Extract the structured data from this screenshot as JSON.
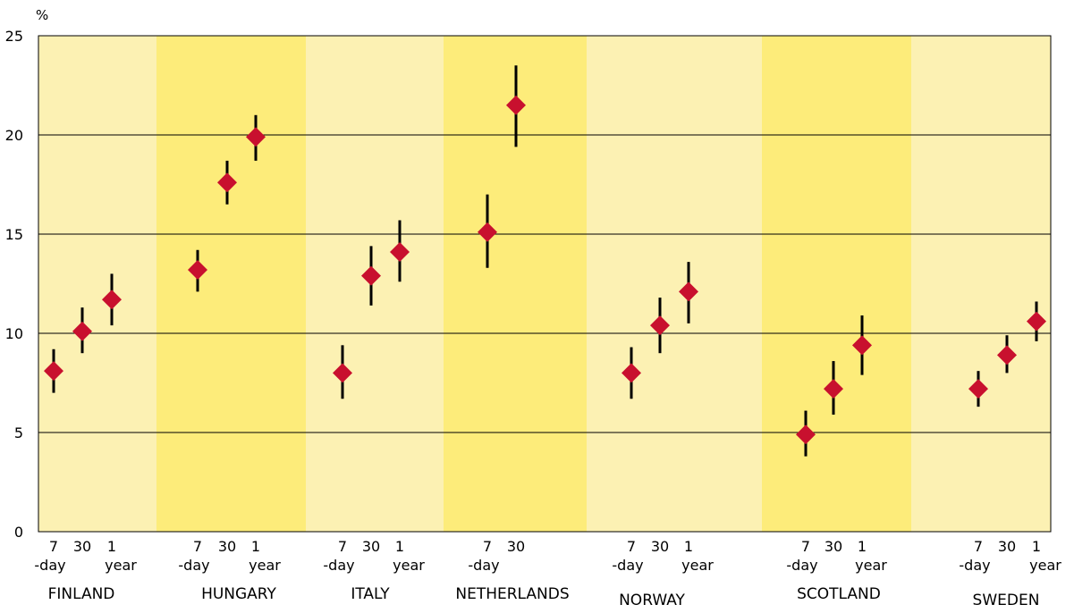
{
  "chart_data": {
    "type": "scatter",
    "title": "",
    "xlabel": "",
    "ylabel": "%",
    "ylim": [
      0,
      25
    ],
    "yticks": [
      0,
      5,
      10,
      15,
      20,
      25
    ],
    "grid": true,
    "band_colors": [
      "#fcf1b3",
      "#fdec7a"
    ],
    "marker_color": "#c8102e",
    "error_bar_color": "#000000",
    "groups": [
      {
        "name": "FINLAND",
        "points": [
          {
            "label": [
              "7",
              "-day"
            ],
            "value": 8.1,
            "low": 7.0,
            "high": 9.2
          },
          {
            "label": [
              "30",
              ""
            ],
            "value": 10.1,
            "low": 9.0,
            "high": 11.3
          },
          {
            "label": [
              "1",
              "year"
            ],
            "value": 11.7,
            "low": 10.4,
            "high": 13.0
          }
        ]
      },
      {
        "name": "HUNGARY",
        "points": [
          {
            "label": [
              "7",
              "-day"
            ],
            "value": 13.2,
            "low": 12.1,
            "high": 14.2
          },
          {
            "label": [
              "30",
              ""
            ],
            "value": 17.6,
            "low": 16.5,
            "high": 18.7
          },
          {
            "label": [
              "1",
              "year"
            ],
            "value": 19.9,
            "low": 18.7,
            "high": 21.0
          }
        ]
      },
      {
        "name": "ITALY",
        "points": [
          {
            "label": [
              "7",
              "-day"
            ],
            "value": 8.0,
            "low": 6.7,
            "high": 9.4
          },
          {
            "label": [
              "30",
              ""
            ],
            "value": 12.9,
            "low": 11.4,
            "high": 14.4
          },
          {
            "label": [
              "1",
              "year"
            ],
            "value": 14.1,
            "low": 12.6,
            "high": 15.7
          }
        ]
      },
      {
        "name": "NETHERLANDS",
        "points": [
          {
            "label": [
              "7",
              "-day"
            ],
            "value": 15.1,
            "low": 13.3,
            "high": 17.0
          },
          {
            "label": [
              "30",
              ""
            ],
            "value": 21.5,
            "low": 19.4,
            "high": 23.5
          }
        ]
      },
      {
        "name": "NORWAY",
        "points": [
          {
            "label": [
              "7",
              "-day"
            ],
            "value": 8.0,
            "low": 6.7,
            "high": 9.3
          },
          {
            "label": [
              "30",
              ""
            ],
            "value": 10.4,
            "low": 9.0,
            "high": 11.8
          },
          {
            "label": [
              "1",
              "year"
            ],
            "value": 12.1,
            "low": 10.5,
            "high": 13.6
          }
        ]
      },
      {
        "name": "SCOTLAND",
        "points": [
          {
            "label": [
              "7",
              "-day"
            ],
            "value": 4.9,
            "low": 3.8,
            "high": 6.1
          },
          {
            "label": [
              "30",
              ""
            ],
            "value": 7.2,
            "low": 5.9,
            "high": 8.6
          },
          {
            "label": [
              "1",
              "year"
            ],
            "value": 9.4,
            "low": 7.9,
            "high": 10.9
          }
        ]
      },
      {
        "name": "SWEDEN",
        "points": [
          {
            "label": [
              "7",
              "-day"
            ],
            "value": 7.2,
            "low": 6.3,
            "high": 8.1
          },
          {
            "label": [
              "30",
              ""
            ],
            "value": 8.9,
            "low": 8.0,
            "high": 9.9
          },
          {
            "label": [
              "1",
              "year"
            ],
            "value": 10.6,
            "low": 9.6,
            "high": 11.6
          }
        ]
      }
    ]
  }
}
